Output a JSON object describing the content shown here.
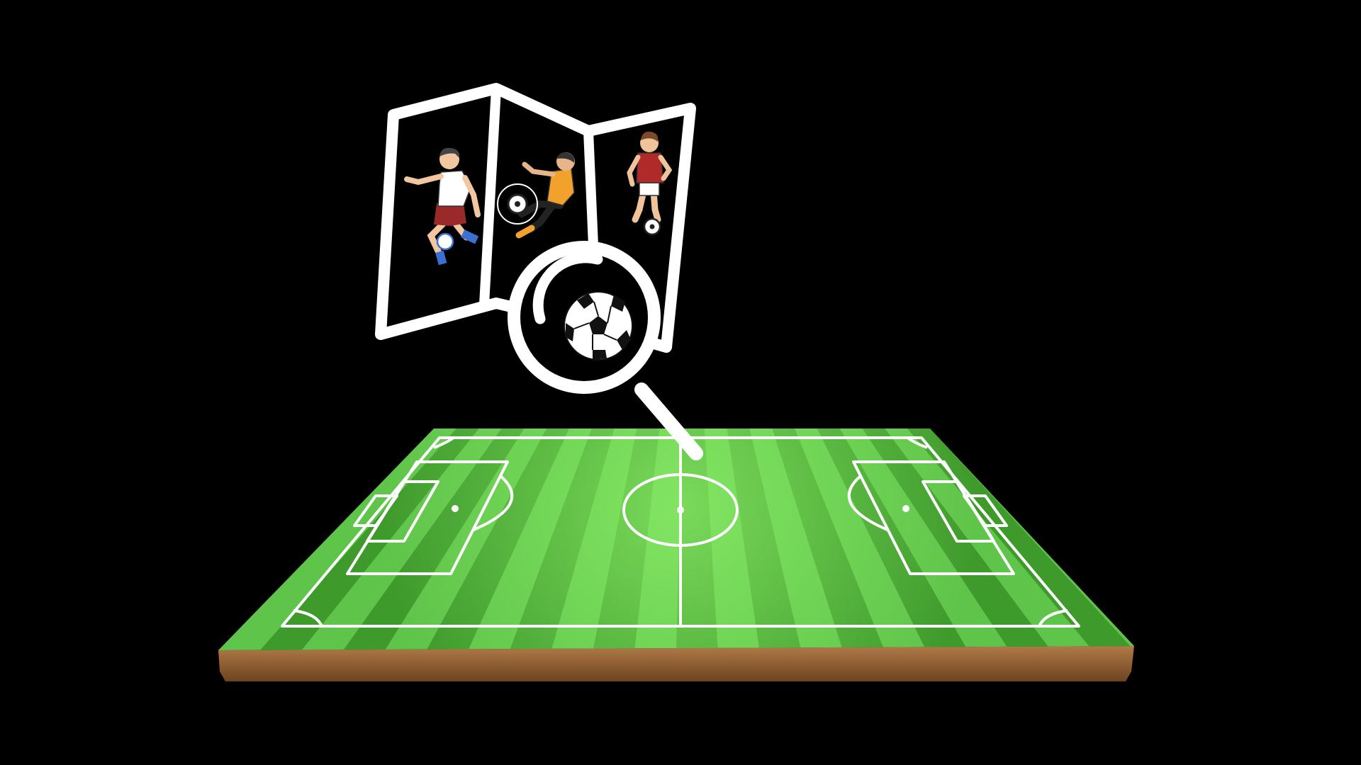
{
  "scene": {
    "background_color": "#000000",
    "pitch": {
      "grass_light": "#5fc44a",
      "grass_dark": "#3f9a2c",
      "glow_color": "#8ef06a",
      "line_color": "#ffffff",
      "soil_top": "#b07a48",
      "soil_bottom": "#6e4420",
      "stripe_count": 22
    },
    "map_icon": {
      "stroke_color": "#ffffff",
      "panel_fill": "#000000",
      "panels": [
        {
          "name": "player-white-shirt",
          "shirt": "#ffffff",
          "shorts": "#9a2a2a",
          "socks": "#3b6fd1",
          "skin": "#f2c7a0",
          "hair": "#444444"
        },
        {
          "name": "player-orange-shirt",
          "shirt": "#f2a22c",
          "shorts": "#222222",
          "socks": "#f2a22c",
          "skin": "#e8b58a",
          "hair": "#333333"
        },
        {
          "name": "player-red-shirt",
          "shirt": "#b02a2a",
          "shorts": "#ffffff",
          "socks": "#ffffff",
          "skin": "#f0c39a",
          "hair": "#7a4a2a"
        }
      ]
    },
    "magnifier_icon": {
      "stroke_color": "#ffffff",
      "lens_fill": "#000000",
      "ball_white": "#ffffff",
      "ball_black": "#111111"
    }
  }
}
